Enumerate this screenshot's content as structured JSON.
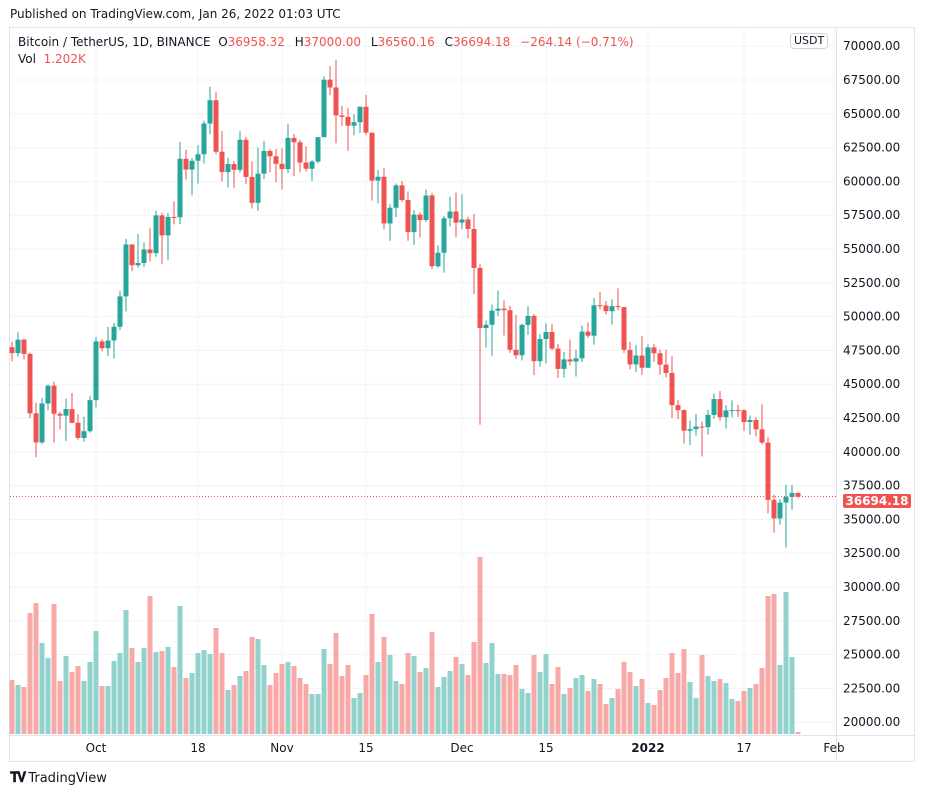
{
  "published": "Published on TradingView.com, Jan 26, 2022 01:03 UTC",
  "legend": {
    "symbol": "Bitcoin / TetherUS, 1D, BINANCE",
    "o_label": "O",
    "o": "36958.32",
    "h_label": "H",
    "h": "37000.00",
    "l_label": "L",
    "l": "36560.16",
    "c_label": "C",
    "c": "36694.18",
    "change": "−264.14 (−0.71%)",
    "vol_label": "Vol",
    "vol": "1.202K"
  },
  "currency": "USDT",
  "last_price": "36694.18",
  "footer": {
    "brand": "TradingView",
    "logo": "17"
  },
  "colors": {
    "up": "#26a69a",
    "down": "#ef5350",
    "up_vol": "#92d2cc",
    "down_vol": "#f7a9a7",
    "grid": "#f0f3fa"
  },
  "chart_data": {
    "type": "candlestick",
    "ylim": [
      19500,
      70000
    ],
    "yticks": [
      "70000.00",
      "67500.00",
      "65000.00",
      "62500.00",
      "60000.00",
      "57500.00",
      "55000.00",
      "52500.00",
      "50000.00",
      "47500.00",
      "45000.00",
      "42500.00",
      "40000.00",
      "37500.00",
      "35000.00",
      "32500.00",
      "30000.00",
      "27500.00",
      "25000.00",
      "22500.00",
      "20000.00"
    ],
    "xticks": [
      {
        "label": "Oct",
        "date": "2021-10-01"
      },
      {
        "label": "18",
        "date": "2021-10-18"
      },
      {
        "label": "Nov",
        "date": "2021-11-01"
      },
      {
        "label": "15",
        "date": "2021-11-15"
      },
      {
        "label": "Dec",
        "date": "2021-12-01"
      },
      {
        "label": "15",
        "date": "2021-12-15"
      },
      {
        "label": "2022",
        "date": "2022-01-01",
        "bold": true
      },
      {
        "label": "17",
        "date": "2022-01-17"
      },
      {
        "label": "Feb",
        "date": "2022-02-01"
      }
    ],
    "grid": true,
    "volume_unit": "K",
    "columns": [
      "date",
      "open",
      "high",
      "low",
      "close",
      "volume"
    ],
    "candles": [
      [
        "2021-09-17",
        47737,
        48150,
        46700,
        47299,
        32.4
      ],
      [
        "2021-09-18",
        47299,
        48843,
        47033,
        48293,
        29.4
      ],
      [
        "2021-09-19",
        48293,
        48372,
        46829,
        47241,
        28.2
      ],
      [
        "2021-09-20",
        47241,
        47347,
        42500,
        42844,
        72.6
      ],
      [
        "2021-09-21",
        42844,
        43639,
        39600,
        40694,
        78.6
      ],
      [
        "2021-09-22",
        40694,
        44000,
        40565,
        43574,
        54.6
      ],
      [
        "2021-09-23",
        43574,
        44978,
        43069,
        44895,
        45.6
      ],
      [
        "2021-09-24",
        44895,
        45200,
        40675,
        42810,
        78
      ],
      [
        "2021-09-25",
        42810,
        42966,
        41646,
        42670,
        31.8
      ],
      [
        "2021-09-26",
        42670,
        43920,
        40800,
        43160,
        46.8
      ],
      [
        "2021-09-27",
        43160,
        44350,
        42098,
        42147,
        37.2
      ],
      [
        "2021-09-28",
        42147,
        42787,
        40888,
        41026,
        40.8
      ],
      [
        "2021-09-29",
        41026,
        42590,
        40753,
        41524,
        31.8
      ],
      [
        "2021-09-30",
        41524,
        44132,
        41410,
        43824,
        43.2
      ],
      [
        "2021-10-01",
        43824,
        48495,
        43283,
        48165,
        61.8
      ],
      [
        "2021-10-02",
        48165,
        48336,
        47430,
        47657,
        28.8
      ],
      [
        "2021-10-03",
        47657,
        49228,
        47088,
        48233,
        28.8
      ],
      [
        "2021-10-04",
        48233,
        49536,
        46891,
        49245,
        43.8
      ],
      [
        "2021-10-05",
        49245,
        51886,
        49022,
        51493,
        48.6
      ],
      [
        "2021-10-06",
        51493,
        55750,
        50382,
        55339,
        74.4
      ],
      [
        "2021-10-07",
        55339,
        55338,
        53357,
        53797,
        51.6
      ],
      [
        "2021-10-08",
        53797,
        56100,
        53617,
        53963,
        43.2
      ],
      [
        "2021-10-09",
        53963,
        55489,
        53661,
        54963,
        51.6
      ],
      [
        "2021-10-10",
        54963,
        56561,
        54080,
        54691,
        82.8
      ],
      [
        "2021-10-11",
        54691,
        57839,
        54415,
        57485,
        49.2
      ],
      [
        "2021-10-12",
        57485,
        57680,
        53879,
        56006,
        49.8
      ],
      [
        "2021-10-13",
        56006,
        57666,
        54167,
        57372,
        52.2
      ],
      [
        "2021-10-14",
        57372,
        58532,
        56818,
        57347,
        40.2
      ],
      [
        "2021-10-15",
        57347,
        62933,
        56850,
        61672,
        76.8
      ],
      [
        "2021-10-16",
        61672,
        62360,
        60150,
        60875,
        33.6
      ],
      [
        "2021-10-17",
        60875,
        61719,
        58963,
        61528,
        36.6
      ],
      [
        "2021-10-18",
        61528,
        62695,
        59844,
        62009,
        48.6
      ],
      [
        "2021-10-19",
        62009,
        64486,
        61322,
        64280,
        50.4
      ],
      [
        "2021-10-20",
        64280,
        67000,
        63482,
        66002,
        48
      ],
      [
        "2021-10-21",
        66002,
        66639,
        62000,
        62193,
        63.6
      ],
      [
        "2021-10-22",
        62193,
        63732,
        60000,
        60688,
        48.6
      ],
      [
        "2021-10-23",
        60688,
        61747,
        59562,
        61286,
        26.4
      ],
      [
        "2021-10-24",
        61286,
        61500,
        59510,
        60853,
        29.4
      ],
      [
        "2021-10-25",
        60853,
        63710,
        60650,
        63078,
        34.8
      ],
      [
        "2021-10-26",
        63078,
        63293,
        59817,
        60329,
        37.8
      ],
      [
        "2021-10-27",
        60329,
        61496,
        58000,
        58413,
        58.2
      ],
      [
        "2021-10-28",
        58413,
        62499,
        57820,
        60575,
        57
      ],
      [
        "2021-10-29",
        60575,
        62980,
        60174,
        62253,
        41.4
      ],
      [
        "2021-10-30",
        62253,
        62359,
        60673,
        61859,
        29.4
      ],
      [
        "2021-10-31",
        61859,
        62405,
        59945,
        61300,
        36.6
      ],
      [
        "2021-11-01",
        61300,
        62437,
        59405,
        60911,
        42
      ],
      [
        "2021-11-02",
        60911,
        64270,
        60624,
        63219,
        43.2
      ],
      [
        "2021-11-03",
        63219,
        63500,
        60382,
        62897,
        40.8
      ],
      [
        "2021-11-04",
        62897,
        63086,
        60677,
        61395,
        33.6
      ],
      [
        "2021-11-05",
        61395,
        62595,
        60721,
        60937,
        30
      ],
      [
        "2021-11-06",
        60937,
        61560,
        60050,
        61470,
        24
      ],
      [
        "2021-11-07",
        61470,
        63286,
        61322,
        63273,
        24
      ],
      [
        "2021-11-08",
        63273,
        67789,
        63273,
        67525,
        51
      ],
      [
        "2021-11-09",
        67525,
        68524,
        66382,
        66947,
        42
      ],
      [
        "2021-11-10",
        66947,
        69000,
        62822,
        64882,
        60.6
      ],
      [
        "2021-11-11",
        64882,
        65600,
        64100,
        64774,
        34.8
      ],
      [
        "2021-11-12",
        64774,
        65450,
        62278,
        64122,
        41.4
      ],
      [
        "2021-11-13",
        64122,
        64972,
        63400,
        64380,
        21.6
      ],
      [
        "2021-11-14",
        64380,
        65550,
        63576,
        65519,
        24.6
      ],
      [
        "2021-11-15",
        65519,
        66401,
        63400,
        63606,
        35.4
      ],
      [
        "2021-11-16",
        63606,
        63617,
        58574,
        60058,
        72
      ],
      [
        "2021-11-17",
        60058,
        60840,
        58373,
        60344,
        43.2
      ],
      [
        "2021-11-18",
        60344,
        60976,
        56474,
        56891,
        58.2
      ],
      [
        "2021-11-19",
        56891,
        58320,
        55600,
        58052,
        47.4
      ],
      [
        "2021-11-20",
        58052,
        59845,
        57353,
        59707,
        31.8
      ],
      [
        "2021-11-21",
        59707,
        60029,
        58486,
        58622,
        30
      ],
      [
        "2021-11-22",
        58622,
        59266,
        55610,
        56247,
        48.6
      ],
      [
        "2021-11-23",
        56247,
        57875,
        55317,
        57541,
        46.8
      ],
      [
        "2021-11-24",
        57541,
        57700,
        55837,
        57138,
        37.2
      ],
      [
        "2021-11-25",
        57138,
        59398,
        57000,
        58960,
        39.6
      ],
      [
        "2021-11-26",
        58960,
        59150,
        53500,
        53726,
        61.2
      ],
      [
        "2021-11-27",
        53726,
        55280,
        53610,
        54721,
        28.2
      ],
      [
        "2021-11-28",
        54721,
        57445,
        53256,
        57274,
        34.2
      ],
      [
        "2021-11-29",
        57274,
        58865,
        56666,
        57776,
        37.8
      ],
      [
        "2021-11-30",
        57776,
        59176,
        55875,
        56950,
        46.2
      ],
      [
        "2021-12-01",
        56950,
        59053,
        56458,
        57184,
        42
      ],
      [
        "2021-12-02",
        57184,
        57375,
        55777,
        56480,
        35.4
      ],
      [
        "2021-12-03",
        56480,
        57600,
        51680,
        53601,
        55.2
      ],
      [
        "2021-12-04",
        53601,
        53859,
        42000,
        49152,
        106.2
      ],
      [
        "2021-12-05",
        49152,
        49699,
        47727,
        49396,
        42.6
      ],
      [
        "2021-12-06",
        49396,
        50891,
        47100,
        50441,
        54.6
      ],
      [
        "2021-12-07",
        50441,
        51936,
        50039,
        50588,
        36
      ],
      [
        "2021-12-08",
        50588,
        51200,
        48600,
        50471,
        36
      ],
      [
        "2021-12-09",
        50471,
        50797,
        47320,
        47545,
        35.4
      ],
      [
        "2021-12-10",
        47545,
        50125,
        46852,
        47140,
        41.4
      ],
      [
        "2021-12-11",
        47140,
        49485,
        46751,
        49389,
        27
      ],
      [
        "2021-12-12",
        49389,
        50777,
        48638,
        50053,
        24.6
      ],
      [
        "2021-12-13",
        50053,
        50189,
        45672,
        46702,
        47.4
      ],
      [
        "2021-12-14",
        46702,
        48700,
        46290,
        48343,
        37.2
      ],
      [
        "2021-12-15",
        48343,
        49500,
        46547,
        48864,
        48
      ],
      [
        "2021-12-16",
        48864,
        49436,
        47511,
        47632,
        30
      ],
      [
        "2021-12-17",
        47632,
        47995,
        45456,
        46131,
        40.2
      ],
      [
        "2021-12-18",
        46131,
        47392,
        45500,
        46834,
        24
      ],
      [
        "2021-12-19",
        46834,
        48300,
        46406,
        46681,
        27.6
      ],
      [
        "2021-12-20",
        46681,
        47537,
        45558,
        46914,
        33.6
      ],
      [
        "2021-12-21",
        46914,
        49328,
        46630,
        48889,
        35.4
      ],
      [
        "2021-12-22",
        48889,
        49576,
        48422,
        48588,
        25.8
      ],
      [
        "2021-12-23",
        48588,
        51375,
        47920,
        50838,
        33
      ],
      [
        "2021-12-24",
        50838,
        51810,
        50514,
        50820,
        30
      ],
      [
        "2021-12-25",
        50820,
        51156,
        50142,
        50399,
        18
      ],
      [
        "2021-12-26",
        50399,
        51280,
        49412,
        50775,
        21.6
      ],
      [
        "2021-12-27",
        50775,
        52088,
        50449,
        50701,
        27
      ],
      [
        "2021-12-28",
        50701,
        50704,
        47313,
        47543,
        43.2
      ],
      [
        "2021-12-29",
        47543,
        48139,
        46096,
        46464,
        37.2
      ],
      [
        "2021-12-30",
        46464,
        47900,
        45900,
        47120,
        28.8
      ],
      [
        "2021-12-31",
        47120,
        48548,
        45678,
        46216,
        33
      ],
      [
        "2022-01-01",
        46216,
        47954,
        46208,
        47722,
        18.6
      ],
      [
        "2022-01-02",
        47722,
        47990,
        46654,
        47286,
        17.4
      ],
      [
        "2022-01-03",
        47286,
        47570,
        45696,
        46446,
        26.4
      ],
      [
        "2022-01-04",
        46446,
        47557,
        45500,
        45832,
        33.6
      ],
      [
        "2022-01-05",
        45832,
        47070,
        42500,
        43451,
        48.6
      ],
      [
        "2022-01-06",
        43451,
        43816,
        42430,
        43082,
        36.6
      ],
      [
        "2022-01-07",
        43082,
        43145,
        40610,
        41566,
        51
      ],
      [
        "2022-01-08",
        41566,
        42300,
        40501,
        41679,
        31.2
      ],
      [
        "2022-01-09",
        41679,
        42786,
        41200,
        41864,
        21.6
      ],
      [
        "2022-01-10",
        41864,
        42248,
        39650,
        41822,
        47.4
      ],
      [
        "2022-01-11",
        41822,
        43100,
        41268,
        42729,
        34.8
      ],
      [
        "2022-01-12",
        42729,
        44322,
        42450,
        43902,
        31.8
      ],
      [
        "2022-01-13",
        43902,
        44500,
        42311,
        42560,
        33
      ],
      [
        "2022-01-14",
        42560,
        43448,
        41725,
        43059,
        30.6
      ],
      [
        "2022-01-15",
        43059,
        43800,
        42555,
        43084,
        21
      ],
      [
        "2022-01-16",
        43084,
        43475,
        42581,
        43071,
        19.8
      ],
      [
        "2022-01-17",
        43071,
        43176,
        41540,
        42201,
        25.8
      ],
      [
        "2022-01-18",
        42201,
        42691,
        41250,
        42352,
        27.6
      ],
      [
        "2022-01-19",
        42352,
        42559,
        41138,
        41660,
        30
      ],
      [
        "2022-01-20",
        41660,
        43505,
        40553,
        40680,
        39.6
      ],
      [
        "2022-01-21",
        40680,
        41100,
        35440,
        36445,
        82.8
      ],
      [
        "2022-01-22",
        36445,
        36835,
        34008,
        35071,
        84
      ],
      [
        "2022-01-23",
        35071,
        36499,
        34601,
        36244,
        41.4
      ],
      [
        "2022-01-24",
        36244,
        37550,
        32917,
        36660,
        85.2
      ],
      [
        "2022-01-25",
        36660,
        37545,
        35701,
        36958,
        46.2
      ],
      [
        "2022-01-26",
        36958.32,
        37000,
        36560.16,
        36694.18,
        1.202
      ]
    ]
  }
}
